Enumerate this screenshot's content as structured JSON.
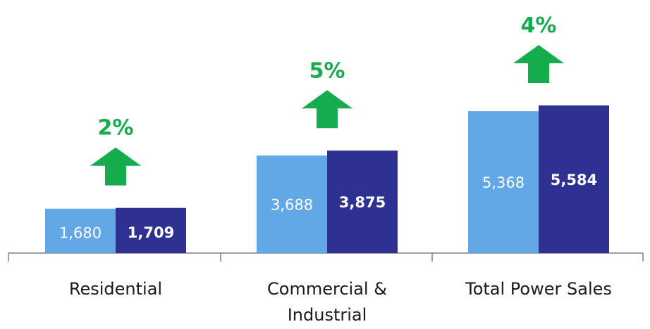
{
  "chart_data": {
    "type": "bar",
    "categories": [
      "Residential",
      "Commercial & Industrial",
      "Total Power Sales"
    ],
    "category_lines": [
      [
        "Residential"
      ],
      [
        "Commercial &",
        "Industrial"
      ],
      [
        "Total Power Sales"
      ]
    ],
    "series": [
      {
        "values": [
          1680,
          3688,
          5368
        ],
        "labels": [
          "1,680",
          "3,688",
          "5,368"
        ],
        "color": "#63a8e6"
      },
      {
        "values": [
          1709,
          3875,
          5584
        ],
        "labels": [
          "1,709",
          "3,875",
          "5,584"
        ],
        "color": "#2e3192"
      }
    ],
    "growth": [
      "2%",
      "5%",
      "4%"
    ],
    "growth_color": "#15ac4e",
    "growth_icon": "up-arrow-icon",
    "ylim": [
      0,
      6200
    ],
    "grid": false,
    "legend": "none",
    "title": "",
    "xlabel": "",
    "ylabel": ""
  }
}
